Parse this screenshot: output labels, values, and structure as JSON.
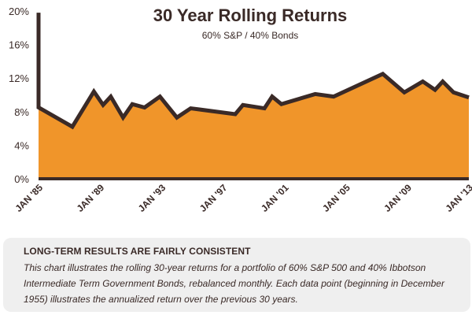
{
  "chart_data": {
    "type": "area",
    "title": "30 Year Rolling Returns",
    "subtitle": "60% S&P / 40% Bonds",
    "xlabel": "",
    "ylabel": "",
    "ylim": [
      0,
      20
    ],
    "y_ticks": [
      "0%",
      "4%",
      "8%",
      "12%",
      "16%",
      "20%"
    ],
    "y_tick_values": [
      0,
      4,
      8,
      12,
      16,
      20
    ],
    "x_tick_labels": [
      "JAN '85",
      "JAN '89",
      "JAN '93",
      "JAN '97",
      "JAN '01",
      "JAN '05",
      "JAN '09",
      "JAN '13"
    ],
    "x_tick_dates": [
      1985,
      1989,
      1993,
      1997,
      2001,
      2005,
      2009,
      2013
    ],
    "xlim": [
      1985,
      2013
    ],
    "grid": false,
    "legend": "none",
    "colors": {
      "fill": "#f0952a",
      "line": "#3a2a27",
      "axis": "#3a2a27"
    },
    "series": [
      {
        "x": [
          1985.0,
          1985.0,
          1987.2,
          1988.6,
          1989.2,
          1989.7,
          1990.5,
          1991.1,
          1991.9,
          1992.9,
          1994.0,
          1994.9,
          1997.8,
          1998.3,
          1999.7,
          2000.2,
          2000.8,
          2003.0,
          2004.2,
          2007.4,
          2008.8,
          2010.0,
          2010.8,
          2011.3,
          2012.0,
          2013.8
        ],
        "values": [
          19.8,
          8.5,
          6.2,
          10.4,
          8.8,
          9.8,
          7.3,
          8.9,
          8.5,
          9.8,
          7.3,
          8.4,
          7.7,
          8.8,
          8.4,
          9.8,
          8.9,
          10.1,
          9.8,
          12.5,
          10.3,
          11.6,
          10.6,
          11.6,
          10.3,
          9.7
        ]
      }
    ]
  },
  "note": {
    "heading": "LONG-TERM RESULTS ARE FAIRLY CONSISTENT",
    "body": "This chart illustrates the rolling 30-year returns for a portfolio of 60% S&P 500 and 40% Ibbotson Intermediate Term Government Bonds, rebalanced monthly. Each data point (beginning in December 1955) illustrates the annualized return over the previous 30 years."
  }
}
